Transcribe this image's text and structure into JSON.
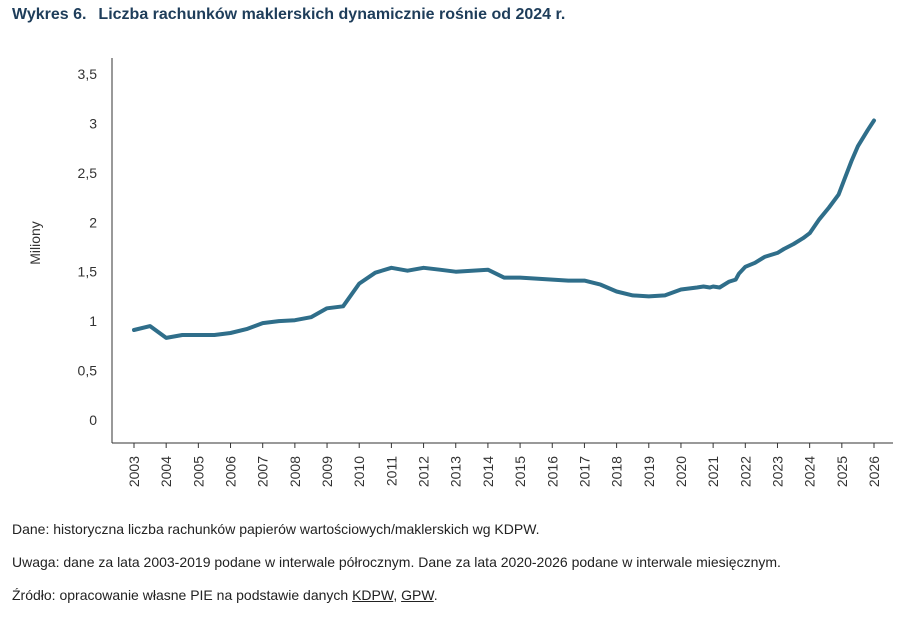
{
  "figure": {
    "number": "Wykres 6.",
    "title": "Liczba rachunków maklerskich dynamicznie rośnie od 2024 r."
  },
  "chart_data": {
    "type": "line",
    "ylabel": "Miliony",
    "xlabel": "",
    "ylim": [
      0,
      3.5
    ],
    "yticks": [
      "0",
      "0,5",
      "1",
      "1,5",
      "2",
      "2,5",
      "3",
      "3,5"
    ],
    "ytick_values": [
      0,
      0.5,
      1,
      1.5,
      2,
      2.5,
      3,
      3.5
    ],
    "xlim": [
      2002.6,
      2026.3
    ],
    "xticks": [
      "2003",
      "2004",
      "2005",
      "2006",
      "2007",
      "2008",
      "2009",
      "2010",
      "2011",
      "2012",
      "2013",
      "2014",
      "2015",
      "2016",
      "2017",
      "2018",
      "2019",
      "2020",
      "2021",
      "2022",
      "2023",
      "2024",
      "2025",
      "2026"
    ],
    "grid": false,
    "color": "#2f6e8a",
    "series": [
      {
        "x": [
          2003.0,
          2003.5,
          2004.0,
          2004.5,
          2005.0,
          2005.5,
          2006.0,
          2006.5,
          2007.0,
          2007.5,
          2008.0,
          2008.5,
          2009.0,
          2009.5,
          2010.0,
          2010.5,
          2011.0,
          2011.5,
          2012.0,
          2012.5,
          2013.0,
          2013.5,
          2014.0,
          2014.5,
          2015.0,
          2015.5,
          2016.0,
          2016.5,
          2017.0,
          2017.5,
          2018.0,
          2018.5,
          2019.0,
          2019.5,
          2020.0,
          2020.5,
          2020.7,
          2020.9,
          2021.0,
          2021.2,
          2021.5,
          2021.7,
          2021.8,
          2022.0,
          2022.3,
          2022.6,
          2023.0,
          2023.2,
          2023.5,
          2023.8,
          2024.0,
          2024.3,
          2024.6,
          2024.9,
          2025.1,
          2025.3,
          2025.5,
          2025.8,
          2026.0
        ],
        "y": [
          0.91,
          0.95,
          0.83,
          0.86,
          0.86,
          0.86,
          0.88,
          0.92,
          0.98,
          1.0,
          1.01,
          1.04,
          1.13,
          1.15,
          1.38,
          1.49,
          1.54,
          1.51,
          1.54,
          1.52,
          1.5,
          1.51,
          1.52,
          1.44,
          1.44,
          1.43,
          1.42,
          1.41,
          1.41,
          1.37,
          1.3,
          1.26,
          1.25,
          1.26,
          1.32,
          1.34,
          1.35,
          1.34,
          1.35,
          1.34,
          1.4,
          1.42,
          1.48,
          1.55,
          1.59,
          1.65,
          1.69,
          1.73,
          1.78,
          1.84,
          1.89,
          2.03,
          2.15,
          2.28,
          2.45,
          2.62,
          2.77,
          2.93,
          3.03
        ]
      }
    ]
  },
  "notes": {
    "data": "Dane: historyczna liczba rachunków papierów wartościowych/maklerskich wg KDPW.",
    "remark": "Uwaga: dane za lata 2003-2019 podane w interwale półrocznym. Dane za lata 2020-2026 podane w interwale miesięcznym.",
    "source_prefix": "Źródło: opracowanie własne PIE na podstawie danych ",
    "source_link1": "KDPW",
    "source_sep": ", ",
    "source_link2": "GPW",
    "source_end": "."
  }
}
